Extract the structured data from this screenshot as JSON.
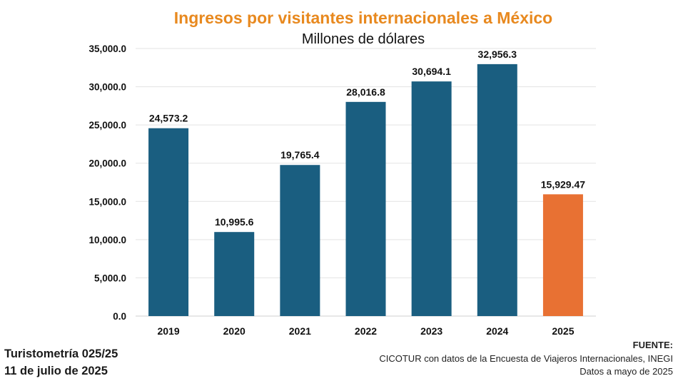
{
  "colors": {
    "title": "#E8891F",
    "bar": "#1A5E80",
    "highlight": "#E87133",
    "grid": "#E3E3E3",
    "text": "#111111"
  },
  "footer": {
    "report": "Turistometría 025/25",
    "date": "11 de julio de 2025",
    "source_head": "FUENTE:",
    "source_body": "CICOTUR con datos de la Encuesta de Viajeros Internacionales, INEGI",
    "source_note": "Datos a mayo de 2025"
  },
  "chart_data": {
    "type": "bar",
    "title": "Ingresos por visitantes internacionales a México",
    "subtitle": "Millones de dólares",
    "xlabel": "",
    "ylabel": "",
    "categories": [
      "2019",
      "2020",
      "2021",
      "2022",
      "2023",
      "2024",
      "2025"
    ],
    "values": [
      24573.2,
      10995.6,
      19765.4,
      28016.8,
      30694.1,
      32956.3,
      15929.47
    ],
    "data_labels": [
      "24,573.2",
      "10,995.6",
      "19,765.4",
      "28,016.8",
      "30,694.1",
      "32,956.3",
      "15,929.47"
    ],
    "highlight_category": "2025",
    "ylim": [
      0,
      35000
    ],
    "yticks": [
      0,
      5000,
      10000,
      15000,
      20000,
      25000,
      30000,
      35000
    ],
    "ytick_labels": [
      "0.0",
      "5,000.0",
      "10,000.0",
      "15,000.0",
      "20,000.0",
      "25,000.0",
      "30,000.0",
      "35,000.0"
    ],
    "grid": true,
    "legend": "none"
  }
}
